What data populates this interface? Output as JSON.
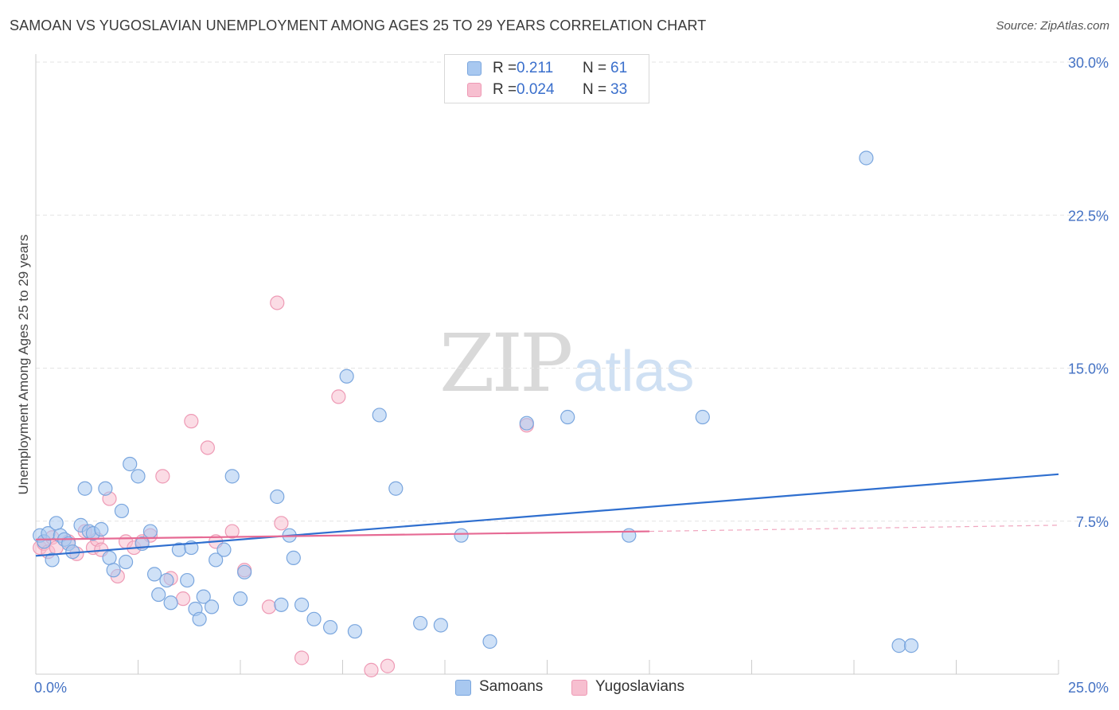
{
  "header": {
    "title": "SAMOAN VS YUGOSLAVIAN UNEMPLOYMENT AMONG AGES 25 TO 29 YEARS CORRELATION CHART",
    "source": "Source: ZipAtlas.com"
  },
  "watermark": {
    "zip": "ZIP",
    "atlas": "atlas"
  },
  "legend": {
    "rows": [
      {
        "r_label": "R =",
        "r_value": "0.211",
        "n_label": "N =",
        "n_value": "61"
      },
      {
        "r_label": "R =",
        "r_value": "0.024",
        "n_label": "N =",
        "n_value": "33"
      }
    ]
  },
  "bottom_legend": {
    "items": [
      "Samoans",
      "Yugoslavians"
    ]
  },
  "colors": {
    "samoans_fill": "#a8c8f0",
    "samoans_stroke": "#7aa6de",
    "samoans_line": "#2f6fcf",
    "yugoslavians_fill": "#f7bfd0",
    "yugoslavians_stroke": "#ee9ab5",
    "yugoslavians_line": "#e66a94",
    "axis_text": "#4472c4",
    "grid": "#e3e3e3"
  },
  "chart_data": {
    "type": "scatter",
    "title": "SAMOAN VS YUGOSLAVIAN UNEMPLOYMENT AMONG AGES 25 TO 29 YEARS CORRELATION CHART",
    "xlabel": "",
    "ylabel": "Unemployment Among Ages 25 to 29 years",
    "xlim": [
      0,
      25
    ],
    "ylim": [
      0,
      30
    ],
    "x_tick_labels": [
      "0.0%",
      "25.0%"
    ],
    "y_ticks": [
      {
        "value": 7.5,
        "label": "7.5%"
      },
      {
        "value": 15.0,
        "label": "15.0%"
      },
      {
        "value": 22.5,
        "label": "22.5%"
      },
      {
        "value": 30.0,
        "label": "30.0%"
      }
    ],
    "series": [
      {
        "name": "Samoans",
        "r": 0.211,
        "n": 61,
        "trend": {
          "x": [
            0,
            25
          ],
          "y": [
            5.8,
            9.8
          ],
          "style": "solid"
        },
        "points": [
          [
            0.1,
            6.8
          ],
          [
            0.2,
            6.5
          ],
          [
            0.3,
            6.9
          ],
          [
            0.4,
            5.6
          ],
          [
            0.5,
            7.4
          ],
          [
            0.6,
            6.8
          ],
          [
            0.7,
            6.6
          ],
          [
            0.8,
            6.4
          ],
          [
            0.9,
            6.0
          ],
          [
            1.1,
            7.3
          ],
          [
            1.2,
            9.1
          ],
          [
            1.3,
            7.0
          ],
          [
            1.4,
            6.9
          ],
          [
            1.6,
            7.1
          ],
          [
            1.7,
            9.1
          ],
          [
            1.8,
            5.7
          ],
          [
            1.9,
            5.1
          ],
          [
            2.1,
            8.0
          ],
          [
            2.2,
            5.5
          ],
          [
            2.3,
            10.3
          ],
          [
            2.5,
            9.7
          ],
          [
            2.6,
            6.4
          ],
          [
            2.8,
            7.0
          ],
          [
            2.9,
            4.9
          ],
          [
            3.0,
            3.9
          ],
          [
            3.2,
            4.6
          ],
          [
            3.3,
            3.5
          ],
          [
            3.5,
            6.1
          ],
          [
            3.7,
            4.6
          ],
          [
            3.8,
            6.2
          ],
          [
            3.9,
            3.2
          ],
          [
            4.0,
            2.7
          ],
          [
            4.1,
            3.8
          ],
          [
            4.3,
            3.3
          ],
          [
            4.4,
            5.6
          ],
          [
            4.6,
            6.1
          ],
          [
            4.8,
            9.7
          ],
          [
            5.0,
            3.7
          ],
          [
            5.1,
            5.0
          ],
          [
            5.9,
            8.7
          ],
          [
            6.0,
            3.4
          ],
          [
            6.2,
            6.8
          ],
          [
            6.3,
            5.7
          ],
          [
            6.5,
            3.4
          ],
          [
            6.8,
            2.7
          ],
          [
            7.2,
            2.3
          ],
          [
            7.6,
            14.6
          ],
          [
            7.8,
            2.1
          ],
          [
            8.4,
            12.7
          ],
          [
            8.8,
            9.1
          ],
          [
            9.4,
            2.5
          ],
          [
            9.9,
            2.4
          ],
          [
            10.4,
            6.8
          ],
          [
            11.1,
            1.6
          ],
          [
            12.0,
            12.3
          ],
          [
            13.0,
            12.6
          ],
          [
            14.5,
            6.8
          ],
          [
            16.3,
            12.6
          ],
          [
            20.3,
            25.3
          ],
          [
            21.1,
            1.4
          ],
          [
            21.4,
            1.4
          ]
        ]
      },
      {
        "name": "Yugoslavians",
        "r": 0.024,
        "n": 33,
        "trend": {
          "x": [
            0,
            15
          ],
          "y": [
            6.6,
            7.0
          ],
          "style": "solid",
          "dashed_extension": {
            "x": [
              15,
              25
            ],
            "y": [
              7.0,
              7.3
            ]
          }
        },
        "points": [
          [
            0.1,
            6.2
          ],
          [
            0.2,
            6.4
          ],
          [
            0.3,
            6.0
          ],
          [
            0.4,
            6.7
          ],
          [
            0.5,
            6.2
          ],
          [
            0.8,
            6.5
          ],
          [
            1.0,
            5.9
          ],
          [
            1.2,
            7.0
          ],
          [
            1.4,
            6.2
          ],
          [
            1.5,
            6.6
          ],
          [
            1.6,
            6.1
          ],
          [
            1.8,
            8.6
          ],
          [
            2.0,
            4.8
          ],
          [
            2.2,
            6.5
          ],
          [
            2.4,
            6.2
          ],
          [
            2.6,
            6.5
          ],
          [
            2.8,
            6.8
          ],
          [
            3.1,
            9.7
          ],
          [
            3.3,
            4.7
          ],
          [
            3.6,
            3.7
          ],
          [
            3.8,
            12.4
          ],
          [
            4.2,
            11.1
          ],
          [
            4.4,
            6.5
          ],
          [
            4.8,
            7.0
          ],
          [
            5.1,
            5.1
          ],
          [
            5.7,
            3.3
          ],
          [
            5.9,
            18.2
          ],
          [
            6.0,
            7.4
          ],
          [
            6.5,
            0.8
          ],
          [
            7.4,
            13.6
          ],
          [
            8.2,
            0.2
          ],
          [
            8.6,
            0.4
          ],
          [
            12.0,
            12.2
          ]
        ]
      }
    ]
  }
}
